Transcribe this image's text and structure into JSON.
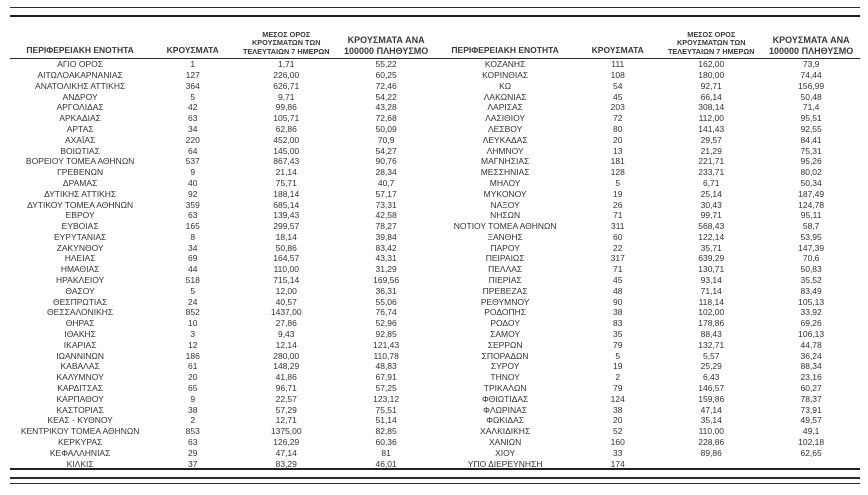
{
  "colors": {
    "text": "#333333",
    "line": "#2b2b2b",
    "background": "#ffffff"
  },
  "table": {
    "headers": [
      "ΠΕΡΙΦΕΡΕΙΑΚΗ ΕΝΟΤΗΤΑ",
      "ΚΡΟΥΣΜΑΤΑ",
      "ΜΕΣΟΣ ΟΡΟΣ ΚΡΟΥΣΜΑΤΩΝ ΤΩΝ ΤΕΛΕΥΤΑΙΩΝ 7 ΗΜΕΡΩΝ",
      "ΚΡΟΥΣΜΑΤΑ ΑΝΑ 100000 ΠΛΗΘΥΣΜΟ"
    ],
    "left_rows": [
      [
        "ΑΓΙΟ ΟΡΟΣ",
        "1",
        "1,71",
        "55,22"
      ],
      [
        "ΑΙΤΩΛΟΑΚΑΡΝΑΝΙΑΣ",
        "127",
        "226,00",
        "60,25"
      ],
      [
        "ΑΝΑΤΟΛΙΚΗΣ ΑΤΤΙΚΗΣ",
        "364",
        "626,71",
        "72,46"
      ],
      [
        "ΑΝΔΡΟΥ",
        "5",
        "9,71",
        "54,22"
      ],
      [
        "ΑΡΓΟΛΙΔΑΣ",
        "42",
        "99,86",
        "43,28"
      ],
      [
        "ΑΡΚΑΔΙΑΣ",
        "63",
        "105,71",
        "72,68"
      ],
      [
        "ΑΡΤΑΣ",
        "34",
        "62,86",
        "50,09"
      ],
      [
        "ΑΧΑΪΑΣ",
        "220",
        "452,00",
        "70,9"
      ],
      [
        "ΒΟΙΩΤΙΑΣ",
        "64",
        "145,00",
        "54,27"
      ],
      [
        "ΒΟΡΕΙΟΥ ΤΟΜΕΑ ΑΘΗΝΩΝ",
        "537",
        "867,43",
        "90,76"
      ],
      [
        "ΓΡΕΒΕΝΩΝ",
        "9",
        "21,14",
        "28,34"
      ],
      [
        "ΔΡΑΜΑΣ",
        "40",
        "75,71",
        "40,7"
      ],
      [
        "ΔΥΤΙΚΗΣ ΑΤΤΙΚΗΣ",
        "92",
        "188,14",
        "57,17"
      ],
      [
        "ΔΥΤΙΚΟΥ ΤΟΜΕΑ ΑΘΗΝΩΝ",
        "359",
        "685,14",
        "73,31"
      ],
      [
        "ΕΒΡΟΥ",
        "63",
        "139,43",
        "42,58"
      ],
      [
        "ΕΥΒΟΙΑΣ",
        "165",
        "299,57",
        "78,27"
      ],
      [
        "ΕΥΡΥΤΑΝΙΑΣ",
        "8",
        "18,14",
        "39,84"
      ],
      [
        "ΖΑΚΥΝΘΟΥ",
        "34",
        "50,86",
        "83,42"
      ],
      [
        "ΗΛΕΙΑΣ",
        "69",
        "164,57",
        "43,31"
      ],
      [
        "ΗΜΑΘΙΑΣ",
        "44",
        "110,00",
        "31,29"
      ],
      [
        "ΗΡΑΚΛΕΙΟΥ",
        "518",
        "715,14",
        "169,56"
      ],
      [
        "ΘΑΣΟΥ",
        "5",
        "12,00",
        "36,31"
      ],
      [
        "ΘΕΣΠΡΩΤΙΑΣ",
        "24",
        "40,57",
        "55,06"
      ],
      [
        "ΘΕΣΣΑΛΟΝΙΚΗΣ",
        "852",
        "1437,00",
        "76,74"
      ],
      [
        "ΘΗΡΑΣ",
        "10",
        "27,86",
        "52,96"
      ],
      [
        "ΙΘΑΚΗΣ",
        "3",
        "9,43",
        "92,85"
      ],
      [
        "ΙΚΑΡΙΑΣ",
        "12",
        "12,14",
        "121,43"
      ],
      [
        "ΙΩΑΝΝΙΝΩΝ",
        "186",
        "280,00",
        "110,78"
      ],
      [
        "ΚΑΒΑΛΑΣ",
        "61",
        "148,29",
        "48,83"
      ],
      [
        "ΚΑΛΥΜΝΟΥ",
        "20",
        "41,86",
        "67,91"
      ],
      [
        "ΚΑΡΔΙΤΣΑΣ",
        "65",
        "96,71",
        "57,25"
      ],
      [
        "ΚΑΡΠΑΘΟΥ",
        "9",
        "22,57",
        "123,12"
      ],
      [
        "ΚΑΣΤΟΡΙΑΣ",
        "38",
        "57,29",
        "75,51"
      ],
      [
        "ΚΕΑΣ - ΚΥΘΝΟΥ",
        "2",
        "12,71",
        "51,14"
      ],
      [
        "ΚΕΝΤΡΙΚΟΥ ΤΟΜΕΑ ΑΘΗΝΩΝ",
        "853",
        "1375,00",
        "82,85"
      ],
      [
        "ΚΕΡΚΥΡΑΣ",
        "63",
        "126,29",
        "60,36"
      ],
      [
        "ΚΕΦΑΛΛΗΝΙΑΣ",
        "29",
        "47,14",
        "81"
      ],
      [
        "ΚΙΛΚΙΣ",
        "37",
        "83,29",
        "46,01"
      ]
    ],
    "right_rows": [
      [
        "ΚΟΖΑΝΗΣ",
        "111",
        "162,00",
        "73,9"
      ],
      [
        "ΚΟΡΙΝΘΙΑΣ",
        "108",
        "180,00",
        "74,44"
      ],
      [
        "ΚΩ",
        "54",
        "92,71",
        "156,99"
      ],
      [
        "ΛΑΚΩΝΙΑΣ",
        "45",
        "66,14",
        "50,48"
      ],
      [
        "ΛΑΡΙΣΑΣ",
        "203",
        "308,14",
        "71,4"
      ],
      [
        "ΛΑΣΙΘΙΟΥ",
        "72",
        "112,00",
        "95,51"
      ],
      [
        "ΛΕΣΒΟΥ",
        "80",
        "141,43",
        "92,55"
      ],
      [
        "ΛΕΥΚΑΔΑΣ",
        "20",
        "29,57",
        "84,41"
      ],
      [
        "ΛΗΜΝΟΥ",
        "13",
        "21,29",
        "75,31"
      ],
      [
        "ΜΑΓΝΗΣΙΑΣ",
        "181",
        "221,71",
        "95,26"
      ],
      [
        "ΜΕΣΣΗΝΙΑΣ",
        "128",
        "233,71",
        "80,02"
      ],
      [
        "ΜΗΛΟΥ",
        "5",
        "6,71",
        "50,34"
      ],
      [
        "ΜΥΚΟΝΟΥ",
        "19",
        "25,14",
        "187,49"
      ],
      [
        "ΝΑΞΟΥ",
        "26",
        "30,43",
        "124,78"
      ],
      [
        "ΝΗΣΩΝ",
        "71",
        "99,71",
        "95,11"
      ],
      [
        "ΝΟΤΙΟΥ ΤΟΜΕΑ ΑΘΗΝΩΝ",
        "311",
        "568,43",
        "58,7"
      ],
      [
        "ΞΑΝΘΗΣ",
        "60",
        "122,14",
        "53,95"
      ],
      [
        "ΠΑΡΟΥ",
        "22",
        "35,71",
        "147,39"
      ],
      [
        "ΠΕΙΡΑΙΩΣ",
        "317",
        "639,29",
        "70,6"
      ],
      [
        "ΠΕΛΛΑΣ",
        "71",
        "130,71",
        "50,83"
      ],
      [
        "ΠΙΕΡΙΑΣ",
        "45",
        "93,14",
        "35,52"
      ],
      [
        "ΠΡΕΒΕΖΑΣ",
        "48",
        "71,14",
        "83,49"
      ],
      [
        "ΡΕΘΥΜΝΟΥ",
        "90",
        "118,14",
        "105,13"
      ],
      [
        "ΡΟΔΟΠΗΣ",
        "38",
        "102,00",
        "33,92"
      ],
      [
        "ΡΟΔΟΥ",
        "83",
        "178,86",
        "69,26"
      ],
      [
        "ΣΑΜΟΥ",
        "35",
        "88,43",
        "106,13"
      ],
      [
        "ΣΕΡΡΩΝ",
        "79",
        "132,71",
        "44,78"
      ],
      [
        "ΣΠΟΡΑΔΩΝ",
        "5",
        "5,57",
        "36,24"
      ],
      [
        "ΣΥΡΟΥ",
        "19",
        "25,29",
        "88,34"
      ],
      [
        "ΤΗΝΟΥ",
        "2",
        "6,43",
        "23,16"
      ],
      [
        "ΤΡΙΚΑΛΩΝ",
        "79",
        "146,57",
        "60,27"
      ],
      [
        "ΦΘΙΩΤΙΔΑΣ",
        "124",
        "159,86",
        "78,37"
      ],
      [
        "ΦΛΩΡΙΝΑΣ",
        "38",
        "47,14",
        "73,91"
      ],
      [
        "ΦΩΚΙΔΑΣ",
        "20",
        "35,14",
        "49,57"
      ],
      [
        "ΧΑΛΚΙΔΙΚΗΣ",
        "52",
        "110,00",
        "49,1"
      ],
      [
        "ΧΑΝΙΩΝ",
        "160",
        "228,86",
        "102,18"
      ],
      [
        "ΧΙΟΥ",
        "33",
        "89,86",
        "62,65"
      ],
      [
        "ΥΠΟ ΔΙΕΡΕΥΝΗΣΗ",
        "174",
        "",
        ""
      ]
    ]
  }
}
